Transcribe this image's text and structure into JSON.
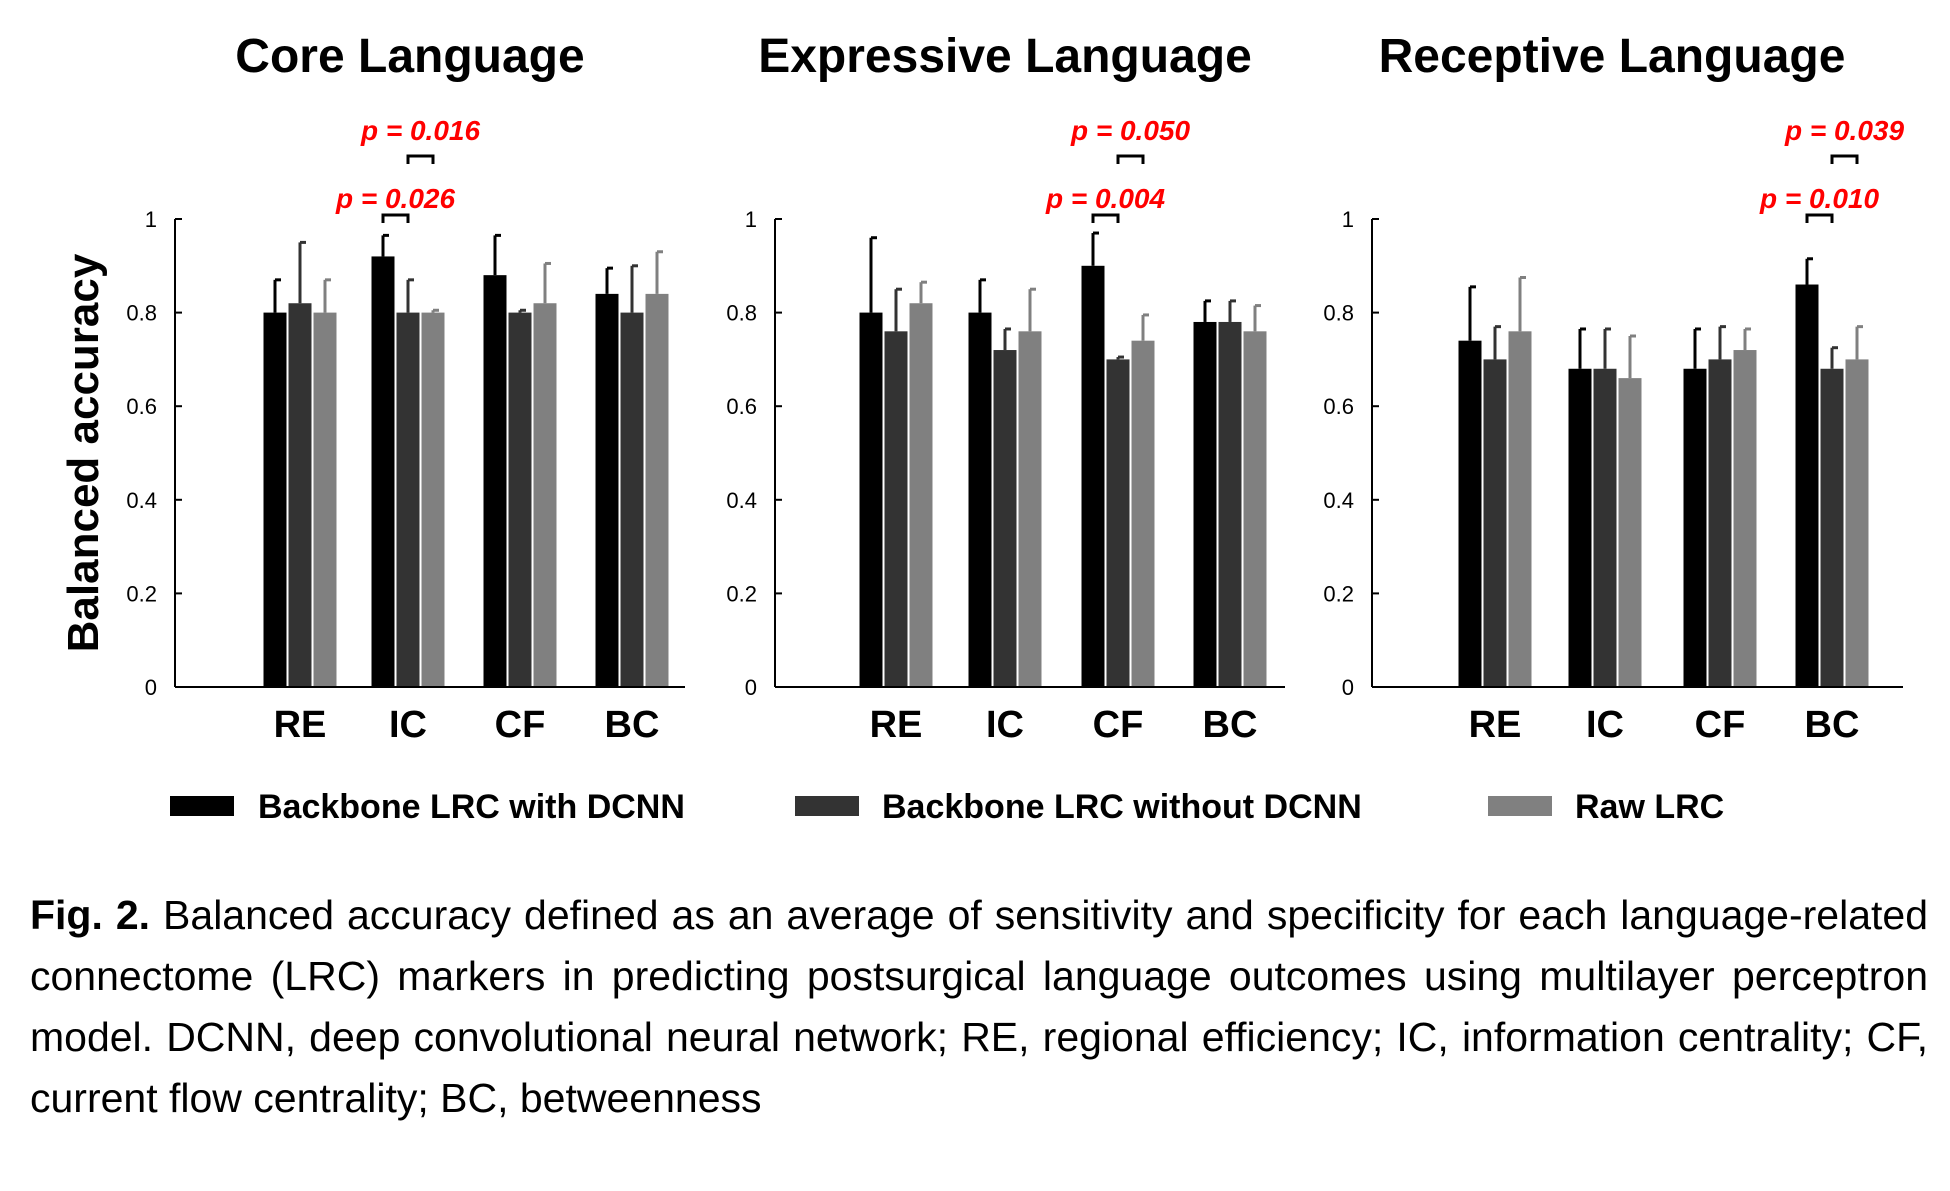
{
  "chart_data": [
    {
      "type": "bar",
      "title": "Core Language",
      "ylabel": "Balanced accuracy",
      "ylim": [
        0,
        1
      ],
      "yticks": [
        "0",
        "0.2",
        "0.4",
        "0.6",
        "0.8",
        "1"
      ],
      "categories": [
        "RE",
        "IC",
        "CF",
        "BC"
      ],
      "series": [
        {
          "name": "Backbone LRC with DCNN",
          "values": [
            0.8,
            0.92,
            0.88,
            0.84
          ],
          "errors": [
            0.07,
            0.045,
            0.085,
            0.055
          ]
        },
        {
          "name": "Backbone LRC without DCNN",
          "values": [
            0.82,
            0.8,
            0.8,
            0.8
          ],
          "errors": [
            0.13,
            0.07,
            0.005,
            0.1
          ]
        },
        {
          "name": "Raw LRC",
          "values": [
            0.8,
            0.8,
            0.82,
            0.84
          ],
          "errors": [
            0.07,
            0.005,
            0.085,
            0.09
          ]
        }
      ],
      "annotations": [
        {
          "text": "p = 0.016",
          "category": "IC",
          "from_series": 1,
          "to_series": 2
        },
        {
          "text": "p = 0.026",
          "category": "IC",
          "from_series": 0,
          "to_series": 1
        }
      ]
    },
    {
      "type": "bar",
      "title": "Expressive Language",
      "ylim": [
        0,
        1
      ],
      "yticks": [
        "0",
        "0.2",
        "0.4",
        "0.6",
        "0.8",
        "1"
      ],
      "categories": [
        "RE",
        "IC",
        "CF",
        "BC"
      ],
      "series": [
        {
          "name": "Backbone LRC with DCNN",
          "values": [
            0.8,
            0.8,
            0.9,
            0.78
          ],
          "errors": [
            0.16,
            0.07,
            0.07,
            0.045
          ]
        },
        {
          "name": "Backbone LRC without DCNN",
          "values": [
            0.76,
            0.72,
            0.7,
            0.78
          ],
          "errors": [
            0.09,
            0.045,
            0.005,
            0.045
          ]
        },
        {
          "name": "Raw LRC",
          "values": [
            0.82,
            0.76,
            0.74,
            0.76
          ],
          "errors": [
            0.045,
            0.09,
            0.055,
            0.055
          ]
        }
      ],
      "annotations": [
        {
          "text": "p = 0.050",
          "category": "CF",
          "from_series": 1,
          "to_series": 2
        },
        {
          "text": "p = 0.004",
          "category": "CF",
          "from_series": 0,
          "to_series": 1
        }
      ]
    },
    {
      "type": "bar",
      "title": "Receptive Language",
      "ylim": [
        0,
        1
      ],
      "yticks": [
        "0",
        "0.2",
        "0.4",
        "0.6",
        "0.8",
        "1"
      ],
      "categories": [
        "RE",
        "IC",
        "CF",
        "BC"
      ],
      "series": [
        {
          "name": "Backbone LRC with DCNN",
          "values": [
            0.74,
            0.68,
            0.68,
            0.86
          ],
          "errors": [
            0.115,
            0.085,
            0.085,
            0.055
          ]
        },
        {
          "name": "Backbone LRC without DCNN",
          "values": [
            0.7,
            0.68,
            0.7,
            0.68
          ],
          "errors": [
            0.07,
            0.085,
            0.07,
            0.045
          ]
        },
        {
          "name": "Raw LRC",
          "values": [
            0.76,
            0.66,
            0.72,
            0.7
          ],
          "errors": [
            0.115,
            0.09,
            0.045,
            0.07
          ]
        }
      ],
      "annotations": [
        {
          "text": "p = 0.039",
          "category": "BC",
          "from_series": 1,
          "to_series": 2
        },
        {
          "text": "p = 0.010",
          "category": "BC",
          "from_series": 0,
          "to_series": 1
        }
      ]
    }
  ],
  "legend": [
    {
      "label": "Backbone LRC with DCNN",
      "color": "#000000"
    },
    {
      "label": "Backbone LRC without DCNN",
      "color": "#333333"
    },
    {
      "label": "Raw LRC",
      "color": "#808080"
    }
  ],
  "series_colors": [
    "#000000",
    "#333333",
    "#808080"
  ],
  "annotation_color": "#ff0000",
  "caption": {
    "label": "Fig. 2.",
    "text": " Balanced accuracy defined as an average of sensitivity and specificity for each language-related connectome (LRC) markers in predicting postsurgical language outcomes using multilayer perceptron model. DCNN, deep convolutional neural network; RE, regional efficiency; IC, information centrality; CF, current flow centrality; BC, betweenness"
  }
}
